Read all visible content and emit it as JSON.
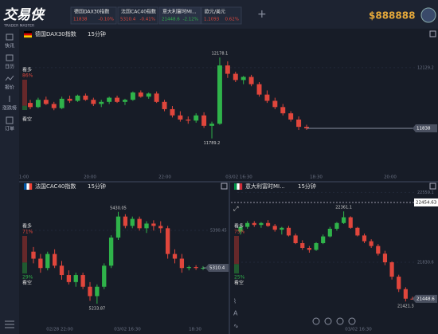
{
  "app": {
    "logo": "交易侠",
    "tagline": "TRADER MASTER",
    "balance": "$888888"
  },
  "tickers": [
    {
      "name": "德国DAX30指数",
      "price": "11838",
      "change": "-0.10%"
    },
    {
      "name": "法国CAC40指数",
      "price": "5310.4",
      "change": "-0.41%"
    },
    {
      "name": "意大利富时MI...",
      "price": "21448.6",
      "change": "-2.12%"
    },
    {
      "name": "欧元/美元",
      "price": "1.1093",
      "change": "0.62%"
    }
  ],
  "sidebar": [
    "快讯",
    "日历",
    "报价",
    "涨跌榜",
    "订单"
  ],
  "panels": [
    {
      "title": "德国DAX30指数",
      "interval": "15分钟",
      "ylim": [
        11631,
        12263
      ],
      "yticks": [
        12129.2
      ],
      "times": [
        "1:00",
        "20:00",
        "22:00",
        "03/02 16:30",
        "18:30",
        "20:00"
      ],
      "bull_label": "看多",
      "bull_pct": "86%",
      "bear_label": "看空",
      "candles": [
        [
          11960,
          11975,
          11930,
          11940
        ],
        [
          11940,
          11985,
          11935,
          11975
        ],
        [
          11975,
          11990,
          11950,
          11955
        ],
        [
          11955,
          11965,
          11925,
          11935
        ],
        [
          11935,
          11990,
          11930,
          11980
        ],
        [
          11980,
          11995,
          11960,
          11970
        ],
        [
          11970,
          12000,
          11965,
          11995
        ],
        [
          11995,
          12005,
          11970,
          11975
        ],
        [
          11975,
          11985,
          11945,
          11955
        ],
        [
          11955,
          11975,
          11940,
          11965
        ],
        [
          11965,
          11990,
          11955,
          11985
        ],
        [
          11985,
          11995,
          11960,
          11965
        ],
        [
          11965,
          11980,
          11950,
          11975
        ],
        [
          11975,
          12015,
          11970,
          12010
        ],
        [
          12010,
          12020,
          11985,
          11990
        ],
        [
          11990,
          12010,
          11980,
          12005
        ],
        [
          12005,
          12015,
          11960,
          11965
        ],
        [
          11965,
          11975,
          11920,
          11930
        ],
        [
          11930,
          11945,
          11890,
          11900
        ],
        [
          11900,
          11920,
          11870,
          11880
        ],
        [
          11880,
          11895,
          11860,
          11875
        ],
        [
          11875,
          11910,
          11865,
          11900
        ],
        [
          11900,
          11915,
          11840,
          11850
        ],
        [
          11850,
          11870,
          11789.2,
          11860
        ],
        [
          11860,
          12178.1,
          11855,
          12140
        ],
        [
          12140,
          12160,
          12080,
          12100
        ],
        [
          12100,
          12110,
          12060,
          12070
        ],
        [
          12070,
          12090,
          12050,
          12085
        ],
        [
          12085,
          12095,
          12040,
          12050
        ],
        [
          12050,
          12060,
          11990,
          12000
        ],
        [
          12000,
          12020,
          11960,
          11970
        ],
        [
          11970,
          11985,
          11930,
          11940
        ],
        [
          11940,
          11955,
          11900,
          11910
        ],
        [
          11910,
          11920,
          11870,
          11880
        ],
        [
          11880,
          11895,
          11830,
          11845
        ],
        [
          11845,
          11855,
          11830,
          11838
        ]
      ]
    },
    {
      "title": "法国CAC40指数",
      "interval": "15分钟",
      "ylim": [
        5192.9,
        5468.8
      ],
      "yticks": [
        5390.45
      ],
      "times": [
        "02/28 22:00",
        "03/02 16:30",
        "18:30"
      ],
      "bull_label": "看多",
      "bull_pct": "71%",
      "bear_label": "看空",
      "bear_pct": "29%",
      "candles": [
        [
          5345,
          5355,
          5320,
          5330
        ],
        [
          5330,
          5340,
          5300,
          5310
        ],
        [
          5310,
          5345,
          5305,
          5340
        ],
        [
          5340,
          5350,
          5310,
          5315
        ],
        [
          5315,
          5325,
          5285,
          5295
        ],
        [
          5295,
          5305,
          5275,
          5280
        ],
        [
          5280,
          5300,
          5270,
          5295
        ],
        [
          5295,
          5300,
          5265,
          5270
        ],
        [
          5270,
          5280,
          5240,
          5250
        ],
        [
          5250,
          5275,
          5233.87,
          5270
        ],
        [
          5270,
          5320,
          5265,
          5315
        ],
        [
          5315,
          5380,
          5310,
          5375
        ],
        [
          5375,
          5430.05,
          5370,
          5420
        ],
        [
          5420,
          5425,
          5395,
          5400
        ],
        [
          5400,
          5420,
          5395,
          5415
        ],
        [
          5415,
          5420,
          5390,
          5395
        ],
        [
          5395,
          5410,
          5385,
          5405
        ],
        [
          5405,
          5412,
          5390,
          5400
        ],
        [
          5400,
          5410,
          5385,
          5395
        ],
        [
          5395,
          5400,
          5330,
          5340
        ],
        [
          5340,
          5350,
          5320,
          5330
        ],
        [
          5330,
          5340,
          5300,
          5310
        ],
        [
          5310,
          5315,
          5305,
          5312
        ],
        [
          5312,
          5316,
          5306,
          5310
        ],
        [
          5310,
          5314,
          5306,
          5310.4
        ]
      ]
    },
    {
      "title": "意大利富时MI...",
      "interval": "15分钟",
      "ylim": [
        21198,
        22546
      ],
      "yticks": [
        22559.1,
        21830.6
      ],
      "crosshair": 22454.63,
      "times": [
        "03/02 16:30"
      ],
      "bull_label": "看多",
      "bull_pct": "75%",
      "bear_label": "看空",
      "bear_pct": "25%",
      "candles": [
        [
          22150,
          22220,
          22120,
          22200
        ],
        [
          22200,
          22260,
          22180,
          22240
        ],
        [
          22240,
          22260,
          22200,
          22220
        ],
        [
          22220,
          22250,
          22190,
          22240
        ],
        [
          22240,
          22270,
          22200,
          22210
        ],
        [
          22210,
          22230,
          22150,
          22170
        ],
        [
          22170,
          22200,
          22120,
          22190
        ],
        [
          22190,
          22210,
          22100,
          22110
        ],
        [
          22110,
          22130,
          22020,
          22030
        ],
        [
          22030,
          22060,
          21960,
          21980
        ],
        [
          21980,
          22000,
          21930,
          21960
        ],
        [
          21960,
          22040,
          21950,
          22030
        ],
        [
          22030,
          22120,
          22020,
          22100
        ],
        [
          22100,
          22200,
          22090,
          22180
        ],
        [
          22180,
          22250,
          22160,
          22240
        ],
        [
          22240,
          22361.1,
          22230,
          22300
        ],
        [
          22300,
          22310,
          22180,
          22190
        ],
        [
          22190,
          22200,
          22100,
          22110
        ],
        [
          22110,
          22130,
          22030,
          22050
        ],
        [
          22050,
          22070,
          21980,
          22000
        ],
        [
          22000,
          22020,
          21900,
          21920
        ],
        [
          21920,
          21950,
          21800,
          21830
        ],
        [
          21830,
          21840,
          21650,
          21680
        ],
        [
          21680,
          21700,
          21520,
          21550
        ],
        [
          21550,
          21570,
          21421.3,
          21450
        ],
        [
          21450,
          21470,
          21440,
          21448.6
        ]
      ]
    }
  ]
}
